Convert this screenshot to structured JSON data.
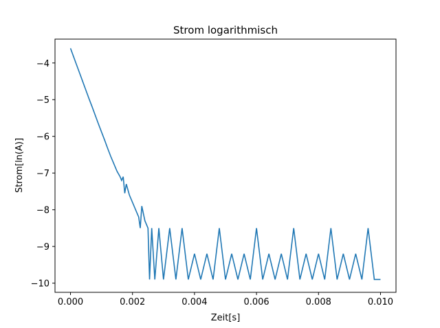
{
  "chart_data": {
    "type": "line",
    "title": "Strom logarithmisch",
    "xlabel": "Zeit[s]",
    "ylabel": "Strom[ln(A)]",
    "xlim": [
      -0.0005,
      0.0105
    ],
    "ylim": [
      -10.25,
      -3.35
    ],
    "xticks": [
      0.0,
      0.002,
      0.004,
      0.006,
      0.008,
      0.01
    ],
    "xtick_labels": [
      "0.000",
      "0.002",
      "0.004",
      "0.006",
      "0.008",
      "0.010"
    ],
    "yticks": [
      -10,
      -9,
      -8,
      -7,
      -6,
      -5,
      -4
    ],
    "ytick_labels": [
      "−10",
      "−9",
      "−8",
      "−7",
      "−6",
      "−5",
      "−4"
    ],
    "grid": false,
    "color": "#1f77b4",
    "series": [
      {
        "x": [
          0.0,
          0.0001,
          0.0002,
          0.0003,
          0.0004,
          0.0005,
          0.0006,
          0.0007,
          0.0008,
          0.0009,
          0.001,
          0.0011,
          0.0012,
          0.0013,
          0.0014,
          0.0015,
          0.0016,
          0.00165,
          0.0017,
          0.00175,
          0.0018,
          0.0019,
          0.002,
          0.0021,
          0.0022,
          0.00225,
          0.0023,
          0.0024,
          0.0025,
          0.00255,
          0.00262,
          0.00272,
          0.00285,
          0.003,
          0.0032,
          0.0034,
          0.0036,
          0.0038,
          0.004,
          0.0042,
          0.0044,
          0.0046,
          0.0048,
          0.005,
          0.0052,
          0.0054,
          0.0056,
          0.0058,
          0.006,
          0.0062,
          0.0064,
          0.0066,
          0.0068,
          0.007,
          0.0072,
          0.0074,
          0.0076,
          0.0078,
          0.008,
          0.0082,
          0.0084,
          0.0086,
          0.0088,
          0.009,
          0.0092,
          0.0094,
          0.0096,
          0.0098,
          0.01
        ],
        "y": [
          -3.6,
          -3.83,
          -4.06,
          -4.29,
          -4.52,
          -4.75,
          -4.98,
          -5.2,
          -5.43,
          -5.66,
          -5.88,
          -6.1,
          -6.33,
          -6.55,
          -6.75,
          -6.95,
          -7.1,
          -7.2,
          -7.1,
          -7.55,
          -7.3,
          -7.6,
          -7.8,
          -8.0,
          -8.2,
          -8.5,
          -7.9,
          -8.3,
          -8.5,
          -9.9,
          -8.5,
          -9.9,
          -8.5,
          -9.9,
          -8.5,
          -9.9,
          -8.5,
          -9.9,
          -9.2,
          -9.9,
          -9.2,
          -9.9,
          -8.5,
          -9.9,
          -9.2,
          -9.9,
          -9.2,
          -9.9,
          -8.5,
          -9.9,
          -9.2,
          -9.9,
          -9.2,
          -9.9,
          -8.5,
          -9.9,
          -9.2,
          -9.9,
          -9.2,
          -9.9,
          -8.5,
          -9.9,
          -9.2,
          -9.9,
          -9.2,
          -9.9,
          -8.5,
          -9.9,
          -9.9
        ]
      }
    ]
  }
}
